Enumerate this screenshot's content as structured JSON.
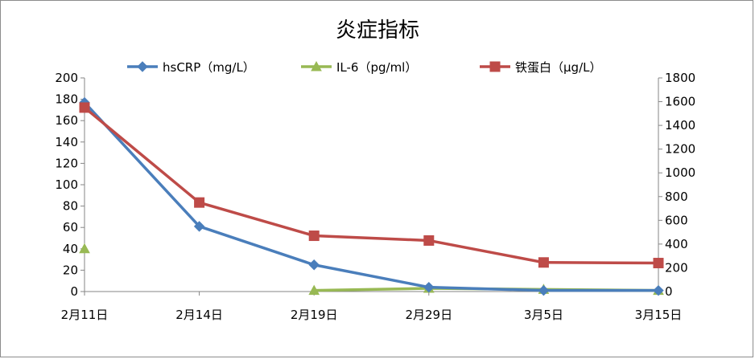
{
  "chart_data": {
    "type": "line",
    "title": "炎症指标",
    "categories": [
      "2月11日",
      "2月14日",
      "2月19日",
      "2月29日",
      "3月5日",
      "3月15日"
    ],
    "series": [
      {
        "name": "hsCRP（mg/L）",
        "axis": "left",
        "color": "#4a7ebb",
        "marker": "diamond",
        "values": [
          177,
          61,
          25,
          4,
          1,
          1
        ]
      },
      {
        "name": "IL-6（pg/ml）",
        "axis": "left",
        "color": "#98b954",
        "marker": "triangle",
        "values": [
          40,
          null,
          1,
          3,
          2,
          1
        ]
      },
      {
        "name": "铁蛋白（μg/L）",
        "axis": "right",
        "color": "#be4b48",
        "marker": "square",
        "values": [
          1550,
          750,
          470,
          430,
          245,
          240
        ]
      }
    ],
    "y_left": {
      "min": 0,
      "max": 200,
      "step": 20,
      "tick_labels": [
        "0",
        "20",
        "40",
        "60",
        "80",
        "100",
        "120",
        "140",
        "160",
        "180",
        "200"
      ]
    },
    "y_right": {
      "min": 0,
      "max": 1800,
      "step": 200,
      "tick_labels": [
        "0",
        "200",
        "400",
        "600",
        "800",
        "1000",
        "1200",
        "1400",
        "1600",
        "1800"
      ]
    },
    "grid": false,
    "legend_position": "top"
  }
}
